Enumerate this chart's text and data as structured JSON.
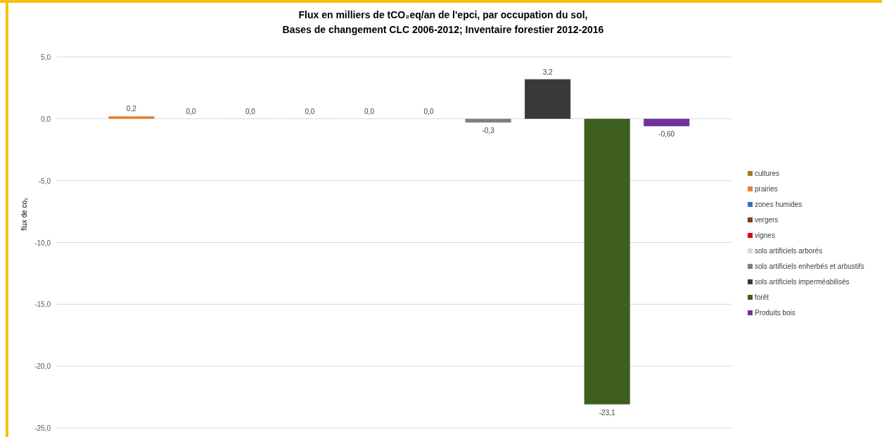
{
  "chart_data": {
    "type": "bar",
    "title": "Flux en milliers de tCO₂eq/an de l'epci, par occupation du sol,\nBases de changement CLC 2006-2012; Inventaire forestier 2012-2016",
    "ylabel": "flux de co₂",
    "categories": [
      null
    ],
    "series": [
      {
        "name": "cultures",
        "color": "#a07c1a",
        "values": [
          null
        ],
        "value_labels": [
          null
        ]
      },
      {
        "name": "prairies",
        "color": "#ed7d31",
        "values": [
          0.2
        ],
        "value_labels": [
          "0,2"
        ]
      },
      {
        "name": "zones humides",
        "color": "#2e75b6",
        "values": [
          0.0
        ],
        "value_labels": [
          "0,0"
        ]
      },
      {
        "name": "vergers",
        "color": "#843c0c",
        "values": [
          0.0
        ],
        "value_labels": [
          "0,0"
        ]
      },
      {
        "name": "vignes",
        "color": "#e00000",
        "values": [
          0.0
        ],
        "value_labels": [
          "0,0"
        ]
      },
      {
        "name": "sols artificiels arborés",
        "color": "#d9d9d9",
        "values": [
          0.0
        ],
        "value_labels": [
          "0,0"
        ]
      },
      {
        "color": "#a5a5a5",
        "values": [
          0.0
        ],
        "value_labels": [
          "0,0"
        ]
      },
      {
        "name": "sols artificiels enherbés et arbustifs",
        "color": "#7f7f7f",
        "values": [
          -0.3
        ],
        "value_labels": [
          "-0,3"
        ]
      },
      {
        "name": "sols artificiels imperméabilisés",
        "color": "#3a3838",
        "values": [
          3.2
        ],
        "value_labels": [
          "3,2"
        ]
      },
      {
        "name": "forêt",
        "color": "#3f5f1f",
        "values": [
          -23.1
        ],
        "value_labels": [
          "-23,1"
        ]
      },
      {
        "name": "Produits bois",
        "color": "#7030a0",
        "values": [
          -0.6
        ],
        "value_labels": [
          "-0,60"
        ]
      }
    ],
    "ylim": [
      -25,
      5
    ],
    "yticks": [
      {
        "value": 5,
        "label": "5,0"
      },
      {
        "value": 0,
        "label": "0,0"
      },
      {
        "value": -5,
        "label": "-5,0"
      },
      {
        "value": -10,
        "label": "-10,0"
      },
      {
        "value": -15,
        "label": "-15,0"
      },
      {
        "value": -20,
        "label": "-20,0"
      },
      {
        "value": -25,
        "label": "-25,0"
      }
    ],
    "grid": "y",
    "legend": "right"
  }
}
